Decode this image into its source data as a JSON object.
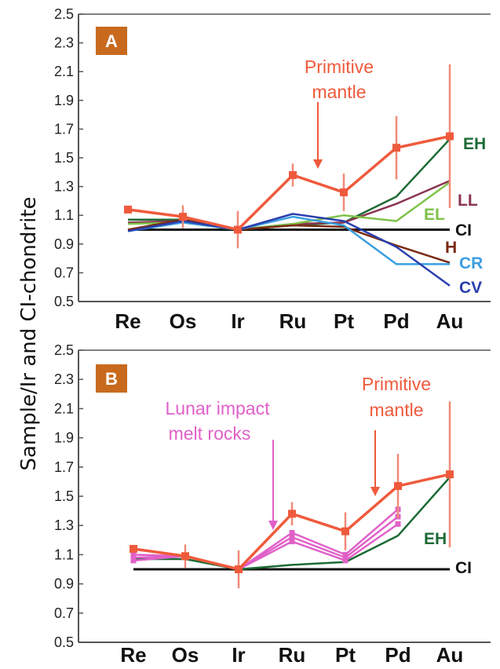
{
  "ylabel": "Sample/Ir and CI-chondrite",
  "colors": {
    "primitive_mantle": "#ef5a3c",
    "error_bar": "#f08a78",
    "EH": "#1c6b35",
    "LL": "#8a3550",
    "EL": "#7fc24a",
    "CI": "#111111",
    "H": "#7a2a12",
    "CR": "#3a9ee0",
    "CV": "#2a3fae",
    "lunar": "#e060c8",
    "badge": "#c86a1e"
  },
  "chart_data": [
    {
      "panel": "A",
      "type": "line",
      "categories": [
        "Re",
        "Os",
        "Ir",
        "Ru",
        "Pt",
        "Pd",
        "Au"
      ],
      "ylim": [
        0.5,
        2.5
      ],
      "yticks": [
        "0.5",
        "0.7",
        "0.9",
        "1.1",
        "1.3",
        "1.5",
        "1.7",
        "1.9",
        "2.1",
        "2.3",
        "2.5"
      ],
      "grid": false,
      "series": [
        {
          "name": "CI",
          "color_key": "CI",
          "values": [
            1.0,
            1.0,
            1.0,
            1.0,
            1.0,
            1.0,
            1.0
          ]
        },
        {
          "name": "EH",
          "color_key": "EH",
          "values": [
            1.07,
            1.07,
            1.0,
            1.03,
            1.05,
            1.23,
            1.63
          ]
        },
        {
          "name": "LL",
          "color_key": "LL",
          "values": [
            1.05,
            1.06,
            1.0,
            1.04,
            1.05,
            1.18,
            1.34
          ]
        },
        {
          "name": "EL",
          "color_key": "EL",
          "values": [
            1.04,
            1.05,
            1.0,
            1.04,
            1.1,
            1.06,
            1.33
          ]
        },
        {
          "name": "H",
          "color_key": "H",
          "values": [
            1.0,
            1.07,
            1.0,
            1.03,
            1.02,
            0.89,
            0.77
          ]
        },
        {
          "name": "CR",
          "color_key": "CR",
          "values": [
            0.99,
            1.05,
            1.0,
            1.09,
            1.03,
            0.76,
            0.76
          ]
        },
        {
          "name": "CV",
          "color_key": "CV",
          "values": [
            0.99,
            1.06,
            1.0,
            1.11,
            1.06,
            0.88,
            0.61
          ]
        },
        {
          "name": "Primitive mantle",
          "color_key": "primitive_mantle",
          "values": [
            1.14,
            1.09,
            1.0,
            1.38,
            1.26,
            1.57,
            1.65
          ],
          "error": [
            0.02,
            0.08,
            0.13,
            0.08,
            0.13,
            0.22,
            0.5
          ]
        }
      ],
      "annotations": [
        {
          "text": "Primitive",
          "color_key": "primitive_mantle"
        },
        {
          "text": "mantle",
          "color_key": "primitive_mantle"
        }
      ]
    },
    {
      "panel": "B",
      "type": "line",
      "categories": [
        "Re",
        "Os",
        "Ir",
        "Ru",
        "Pt",
        "Pd",
        "Au"
      ],
      "ylim": [
        0.5,
        2.5
      ],
      "yticks": [
        "0.5",
        "0.7",
        "0.9",
        "1.1",
        "1.3",
        "1.5",
        "1.7",
        "1.9",
        "2.1",
        "2.3",
        "2.5"
      ],
      "grid": false,
      "series": [
        {
          "name": "CI",
          "color_key": "CI",
          "values": [
            1.0,
            1.0,
            1.0,
            1.0,
            1.0,
            1.0,
            1.0
          ]
        },
        {
          "name": "EH",
          "color_key": "EH",
          "values": [
            1.07,
            1.07,
            1.0,
            1.03,
            1.05,
            1.23,
            1.63
          ]
        },
        {
          "name": "Lunar impact melt rocks",
          "color_key": "lunar",
          "values": [
            1.1,
            1.09,
            1.0,
            1.25,
            1.1,
            1.41,
            null
          ]
        },
        {
          "name": "",
          "color_key": "lunar",
          "values": [
            1.08,
            1.09,
            1.0,
            1.22,
            1.08,
            1.36,
            null
          ]
        },
        {
          "name": "",
          "color_key": "lunar",
          "values": [
            1.06,
            1.09,
            1.0,
            1.19,
            1.06,
            1.31,
            null
          ]
        },
        {
          "name": "Primitive mantle",
          "color_key": "primitive_mantle",
          "values": [
            1.14,
            1.09,
            1.0,
            1.38,
            1.26,
            1.57,
            1.65
          ],
          "error": [
            0.02,
            0.08,
            0.13,
            0.08,
            0.13,
            0.22,
            0.5
          ]
        }
      ],
      "annotations": [
        {
          "text": "Lunar impact",
          "color_key": "lunar"
        },
        {
          "text": "melt rocks",
          "color_key": "lunar"
        },
        {
          "text": "Primitive",
          "color_key": "primitive_mantle"
        },
        {
          "text": "mantle",
          "color_key": "primitive_mantle"
        }
      ]
    }
  ]
}
